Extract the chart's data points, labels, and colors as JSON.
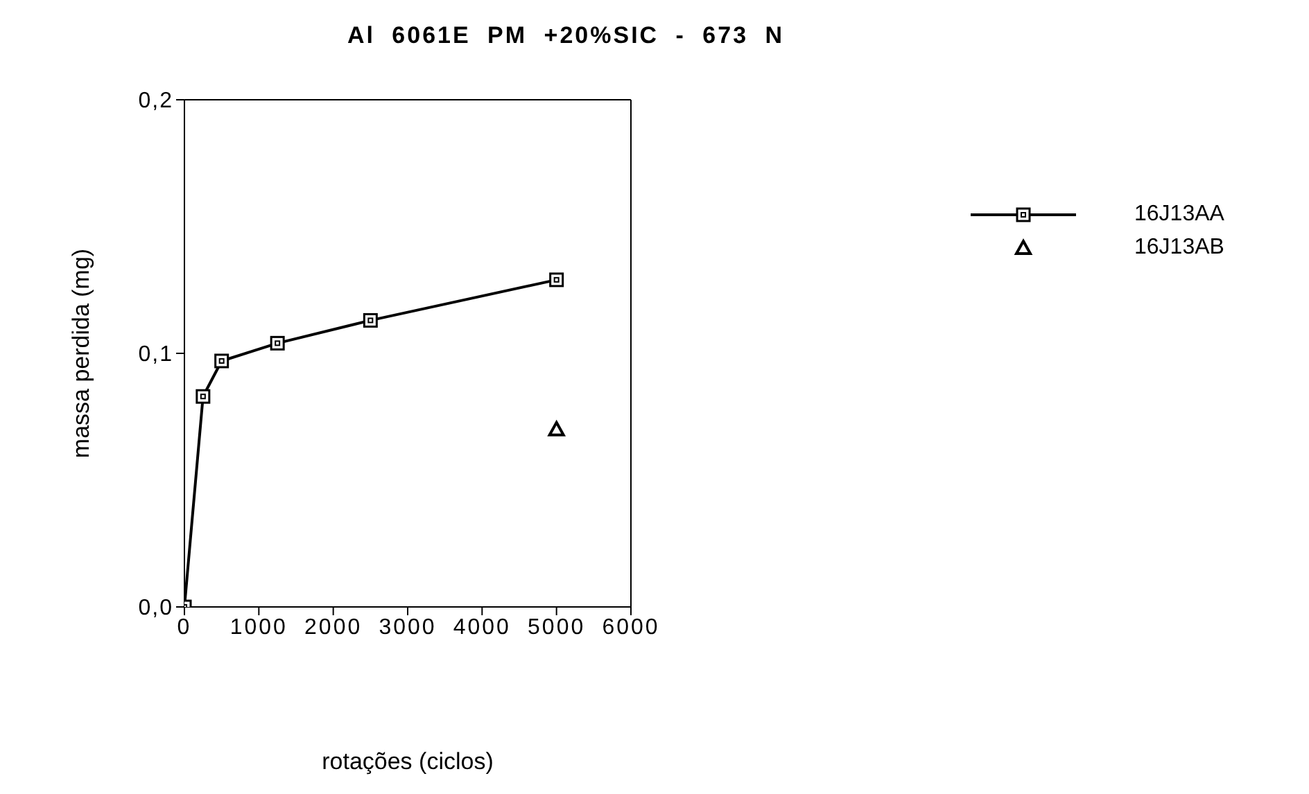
{
  "chart_data": {
    "type": "line",
    "title": "Al 6061E PM +20%SIC - 673 N",
    "xlabel": "rotações (ciclos)",
    "ylabel": "massa perdida (mg)",
    "xlim": [
      0,
      6000
    ],
    "xticks": [
      0,
      1000,
      2000,
      3000,
      4000,
      5000,
      6000
    ],
    "ylim": [
      0,
      0.2
    ],
    "yticks": [
      {
        "value": 0,
        "label": "0,0"
      },
      {
        "value": 0.1,
        "label": "0,1"
      },
      {
        "value": 0.2,
        "label": "0,2"
      }
    ],
    "legend": "top right",
    "series": [
      {
        "name": "16J13AA",
        "marker": "square",
        "color": "#000000",
        "x": [
          0,
          250,
          500,
          1250,
          2500,
          5000
        ],
        "values": [
          0,
          0.083,
          0.097,
          0.104,
          0.113,
          0.129
        ]
      },
      {
        "name": "16J13AB",
        "type": "scatter",
        "marker": "triangle",
        "color": "#000000",
        "x": [
          5000
        ],
        "values": [
          0.07
        ]
      }
    ]
  }
}
